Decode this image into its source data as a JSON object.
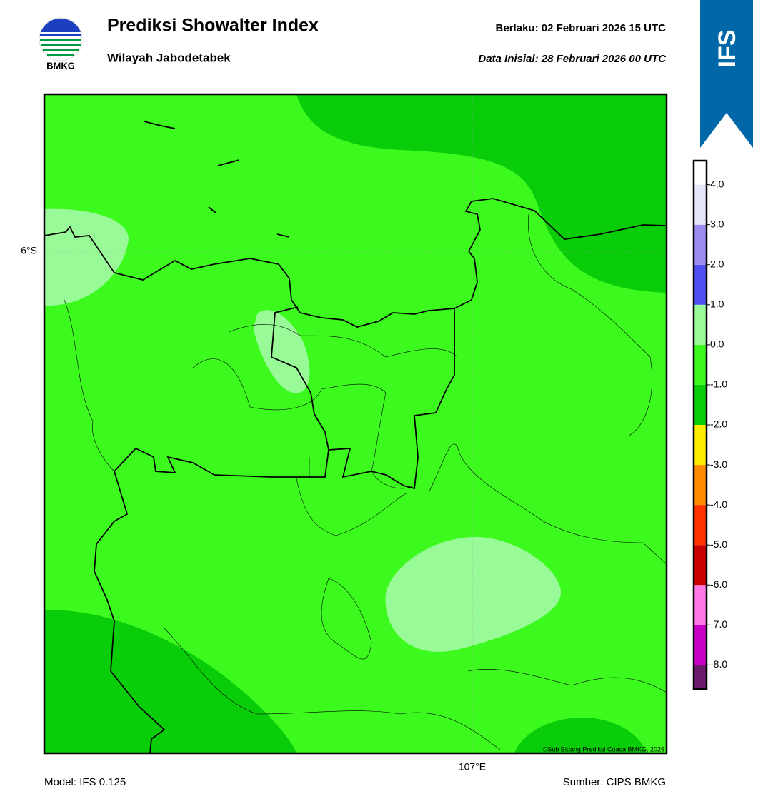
{
  "header": {
    "title": "Prediksi Showalter Index",
    "subtitle": "Wilayah Jabodetabek",
    "valid": "Berlaku:  02 Februari 2026 15 UTC",
    "init": "Data Inisial:  28 Februari 2026 00 UTC",
    "logo": "BMKG",
    "banner": "IFS"
  },
  "map": {
    "lat_label": "6°S",
    "lon_label": "107°E",
    "copyright": "©Sub Bidang Prediksi Cuaca BMKG, 2026"
  },
  "footer": {
    "model": "Model: IFS 0.125",
    "source": "Sumber: CIPS BMKG"
  },
  "colorbar": {
    "bounds": [
      -8.6,
      -8,
      -7,
      -6,
      -5,
      -4,
      -3,
      -2,
      -1,
      0,
      1,
      2,
      3,
      4,
      4.6
    ],
    "colors": [
      "#6b1a6b",
      "#c800c8",
      "#ff78e6",
      "#c80000",
      "#ff3200",
      "#ff8c00",
      "#ffee00",
      "#0acd0a",
      "#3cfa1e",
      "#98fb98",
      "#5050f0",
      "#9c8cf0",
      "#e6e6fa",
      "#ffffff"
    ],
    "ticks": [
      {
        "value": 4,
        "label": "4.0"
      },
      {
        "value": 3,
        "label": "3.0"
      },
      {
        "value": 2,
        "label": "2.0"
      },
      {
        "value": 1,
        "label": "1.0"
      },
      {
        "value": 0,
        "label": "0.0"
      },
      {
        "value": -1,
        "label": "-1.0"
      },
      {
        "value": -2,
        "label": "-2.0"
      },
      {
        "value": -3,
        "label": "-3.0"
      },
      {
        "value": -4,
        "label": "-4.0"
      },
      {
        "value": -5,
        "label": "-5.0"
      },
      {
        "value": -6,
        "label": "-6.0"
      },
      {
        "value": -7,
        "label": "-7.0"
      },
      {
        "value": -8,
        "label": "-8.0"
      }
    ]
  }
}
